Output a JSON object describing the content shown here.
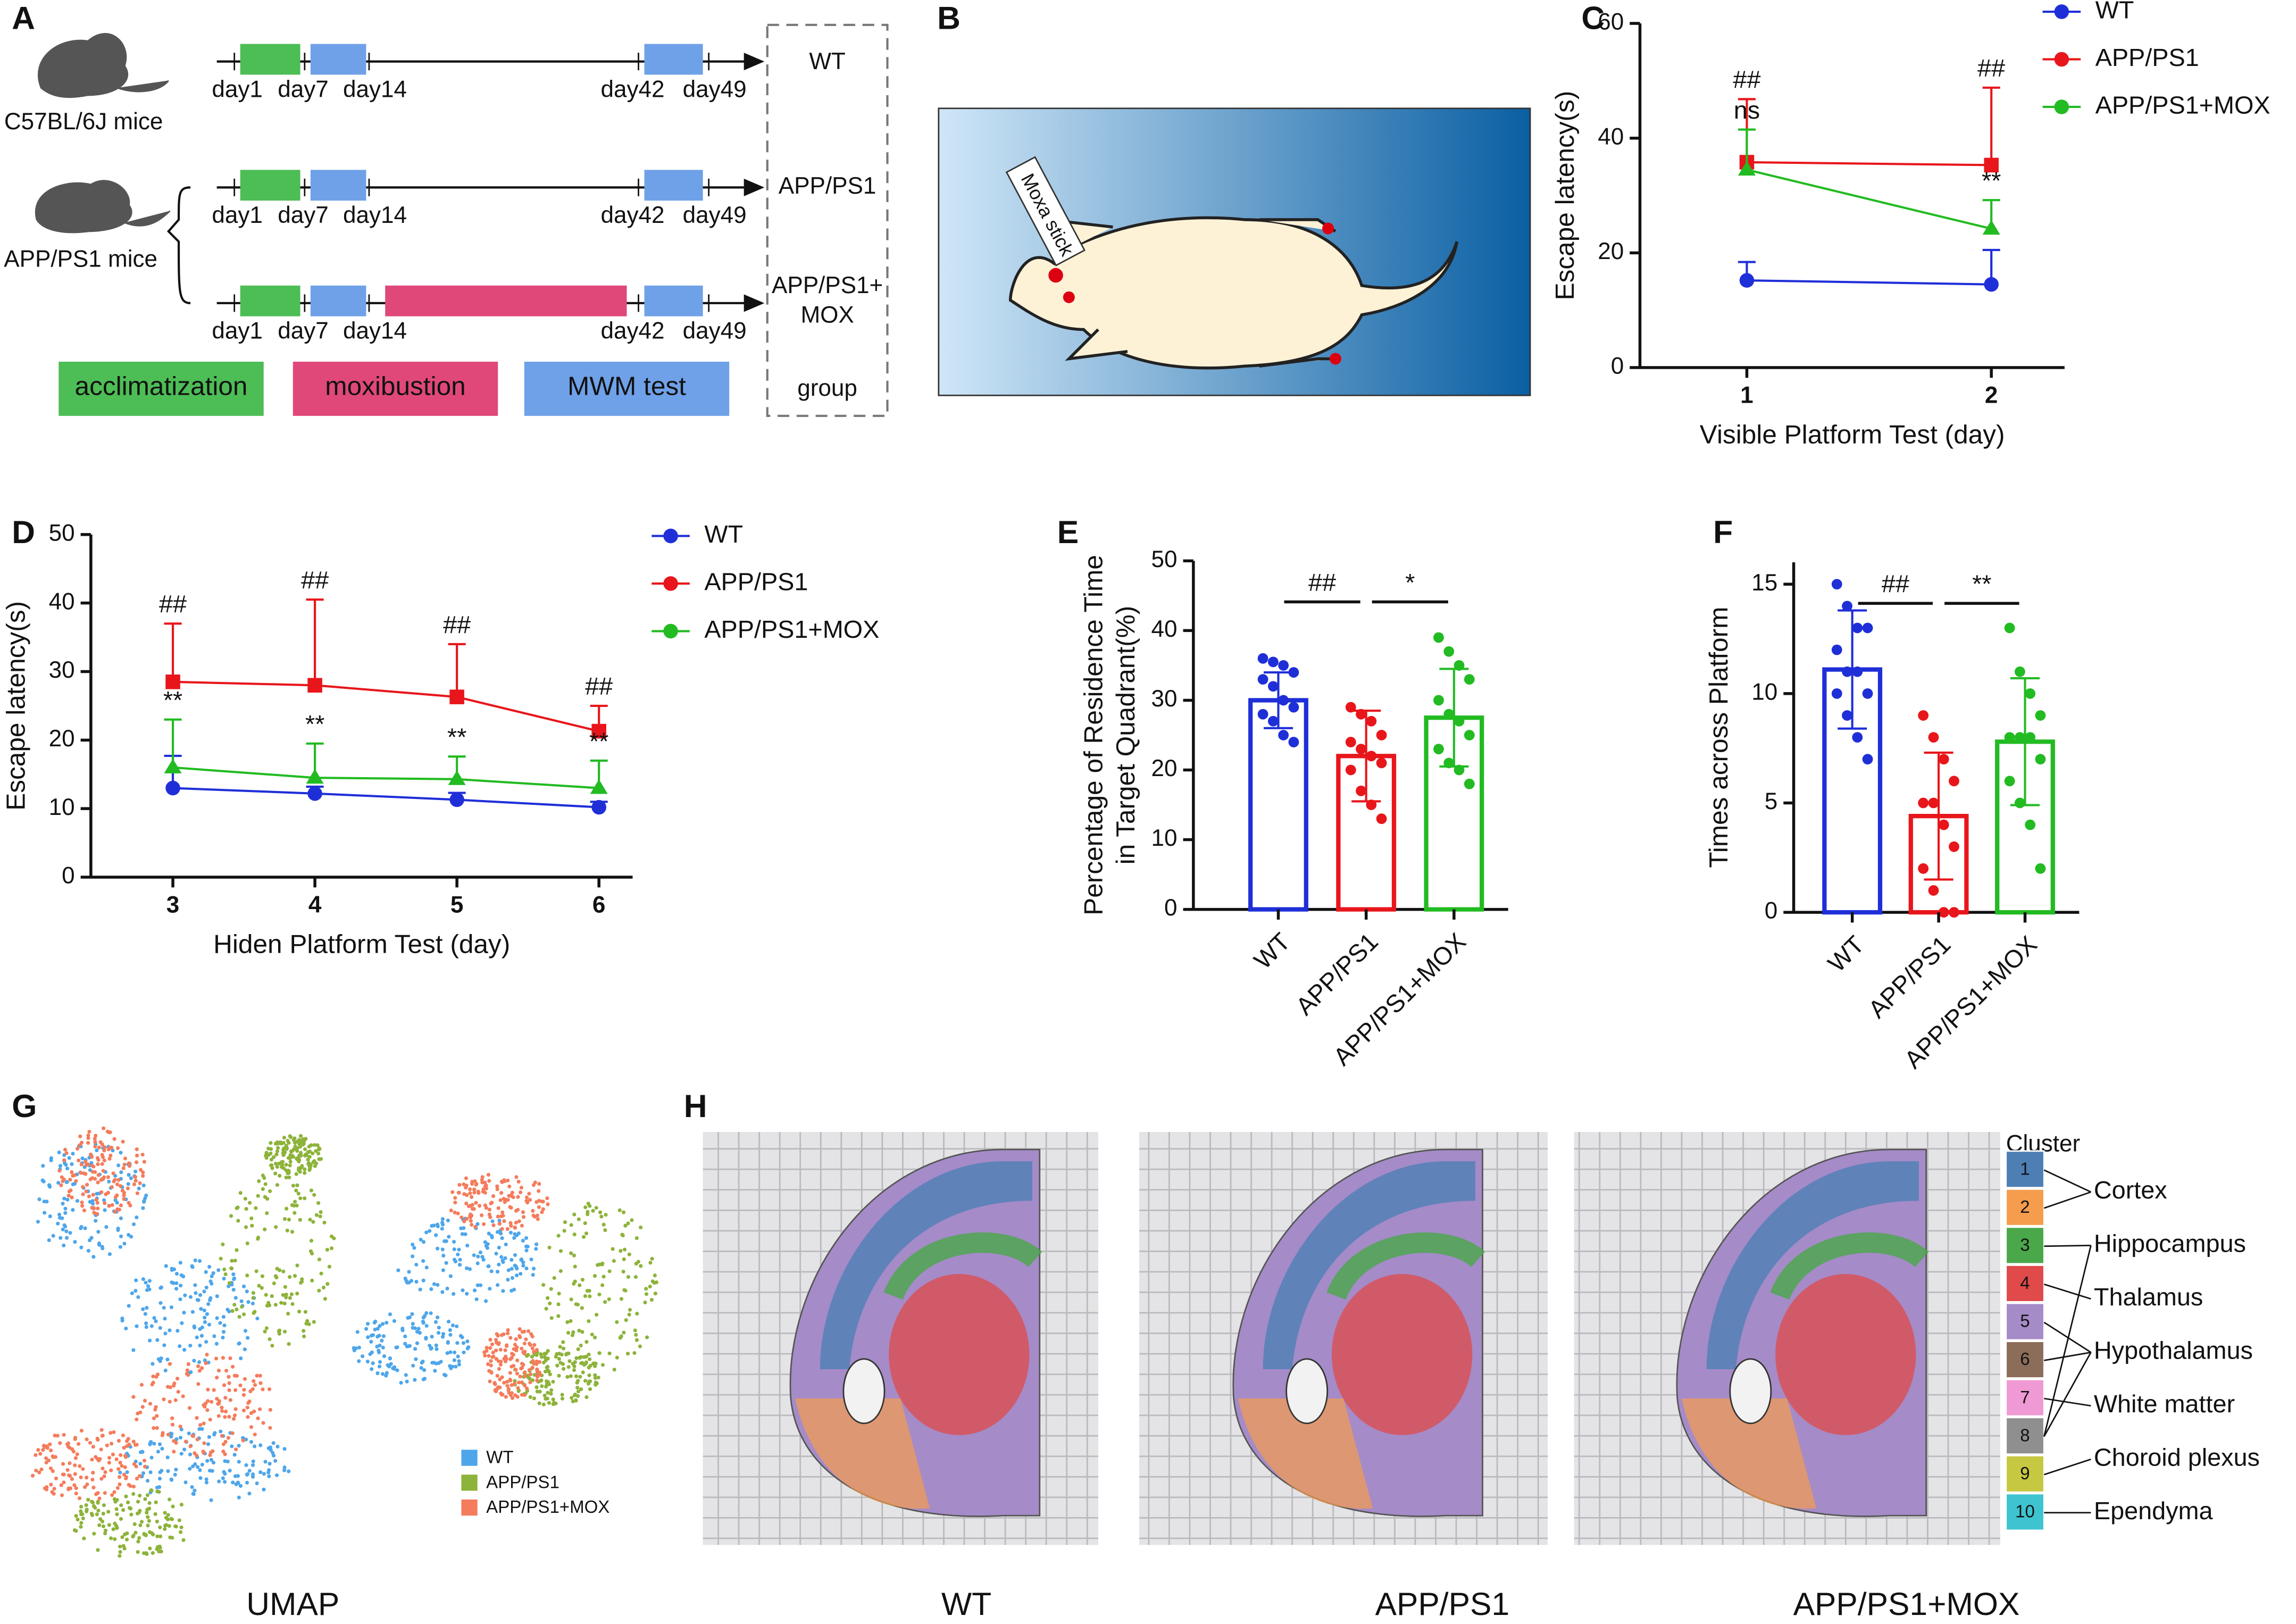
{
  "panels": [
    "A",
    "B",
    "C",
    "D",
    "E",
    "F",
    "G",
    "H"
  ],
  "timeline": {
    "strains": [
      "C57BL/6J mice",
      "APP/PS1 mice"
    ],
    "days": [
      "day1",
      "day7",
      "day14",
      "day42",
      "day49"
    ],
    "groups": [
      "WT",
      "APP/PS1",
      "APP/PS1+",
      "MOX"
    ],
    "legend": [
      "acclimatization",
      "moxibustion",
      "MWM test",
      "group"
    ]
  },
  "schematic": {
    "label": "Moxa stick"
  },
  "chart_data": [
    {
      "type": "line",
      "categories": [
        "1",
        "2"
      ],
      "xlabel": "Visible Platform Test (day)",
      "ylabel": "Escape latency(s)",
      "ylim": [
        0,
        60
      ],
      "yticks": [
        0,
        20,
        40,
        60
      ],
      "series": [
        {
          "name": "WT",
          "color": "#1f2fd8",
          "values": [
            15.2,
            14.5
          ],
          "errors": [
            3.2,
            6
          ],
          "marks": [
            null,
            null
          ]
        },
        {
          "name": "APP/PS1",
          "color": "#e8161b",
          "values": [
            35.8,
            35.3
          ],
          "errors": [
            11,
            13.5
          ],
          "marks": [
            "##",
            "##"
          ]
        },
        {
          "name": "APP/PS1+MOX",
          "color": "#22bb22",
          "values": [
            34.5,
            24.2
          ],
          "errors": [
            7,
            5
          ],
          "marks": [
            "ns",
            "**"
          ]
        }
      ]
    },
    {
      "type": "line",
      "categories": [
        "3",
        "4",
        "5",
        "6"
      ],
      "xlabel": "Hiden Platform Test (day)",
      "ylabel": "Escape latency(s)",
      "ylim": [
        0,
        50
      ],
      "yticks": [
        0,
        10,
        20,
        30,
        40,
        50
      ],
      "series": [
        {
          "name": "WT",
          "color": "#1f2fd8",
          "values": [
            13,
            12.2,
            11.3,
            10.2
          ],
          "errors": [
            4.7,
            1,
            1,
            0.8
          ],
          "marks": [
            null,
            null,
            null,
            null
          ]
        },
        {
          "name": "APP/PS1",
          "color": "#e8161b",
          "values": [
            28.5,
            28,
            26.3,
            21.3
          ],
          "errors": [
            8.5,
            12.5,
            7.7,
            3.7
          ],
          "marks": [
            "##",
            "##",
            "##",
            "##"
          ]
        },
        {
          "name": "APP/PS1+MOX",
          "color": "#22bb22",
          "values": [
            16,
            14.5,
            14.3,
            13
          ],
          "errors": [
            7,
            5,
            3.3,
            4
          ],
          "marks": [
            "**",
            "**",
            "**",
            "**"
          ]
        }
      ]
    },
    {
      "type": "bar",
      "categories": [
        "WT",
        "APP/PS1",
        "APP/PS1+MOX"
      ],
      "ylabel": [
        "Percentage of Residence Time",
        "in Target Quadrant(%)"
      ],
      "ylim": [
        0,
        50
      ],
      "yticks": [
        0,
        10,
        20,
        30,
        40,
        50
      ],
      "colors": [
        "#1f2fd8",
        "#e8161b",
        "#22bb22"
      ],
      "values": [
        30,
        22,
        27.5
      ],
      "errors": [
        4,
        6.5,
        7
      ],
      "points": [
        [
          36,
          35.5,
          35,
          34,
          33,
          32,
          30,
          29,
          28,
          27,
          25,
          24
        ],
        [
          29,
          28,
          27,
          25,
          24,
          23,
          22,
          21,
          20,
          17,
          15,
          13
        ],
        [
          39,
          37,
          35,
          33,
          30,
          28,
          27,
          25,
          23,
          21,
          20,
          18
        ]
      ],
      "significance": [
        "##",
        "*"
      ]
    },
    {
      "type": "bar",
      "categories": [
        "WT",
        "APP/PS1",
        "APP/PS1+MOX"
      ],
      "ylabel": [
        "Times across Platform"
      ],
      "ylim": [
        0,
        16
      ],
      "yticks": [
        0,
        5,
        10,
        15
      ],
      "colors": [
        "#1f2fd8",
        "#e8161b",
        "#22bb22"
      ],
      "values": [
        11.1,
        4.4,
        7.8
      ],
      "errors": [
        2.7,
        2.9,
        2.9
      ],
      "points": [
        [
          15,
          14,
          13,
          13,
          12,
          11,
          11,
          10,
          10,
          9,
          8,
          7
        ],
        [
          9,
          8,
          7,
          6,
          5,
          5,
          4,
          3,
          2,
          1,
          0,
          0
        ],
        [
          13,
          11,
          10,
          9,
          8,
          8,
          8,
          7,
          6,
          5,
          4,
          2
        ]
      ],
      "significance": [
        "##",
        "**"
      ]
    }
  ],
  "umap": {
    "caption": "UMAP",
    "legend": [
      {
        "name": "WT",
        "color": "#4ea6ea"
      },
      {
        "name": "APP/PS1",
        "color": "#8db33a"
      },
      {
        "name": "APP/PS1+MOX",
        "color": "#f47c5c"
      }
    ]
  },
  "spatial": {
    "captions": [
      "WT",
      "APP/PS1",
      "APP/PS1+MOX"
    ],
    "legend_title": "Cluster",
    "clusters": [
      1,
      2,
      3,
      4,
      5,
      6,
      7,
      8,
      9,
      10
    ],
    "cluster_colors": [
      "#4d7fb5",
      "#f59d4d",
      "#4aa84a",
      "#e04a4a",
      "#a58bc8",
      "#8c6d5a",
      "#ef9ad4",
      "#8f8f8f",
      "#c7c842",
      "#3ec4d0"
    ],
    "regions": [
      "Cortex",
      "Hippocampus",
      "Thalamus",
      "Hypothalamus",
      "White matter",
      "Choroid plexus",
      "Ependyma"
    ]
  }
}
